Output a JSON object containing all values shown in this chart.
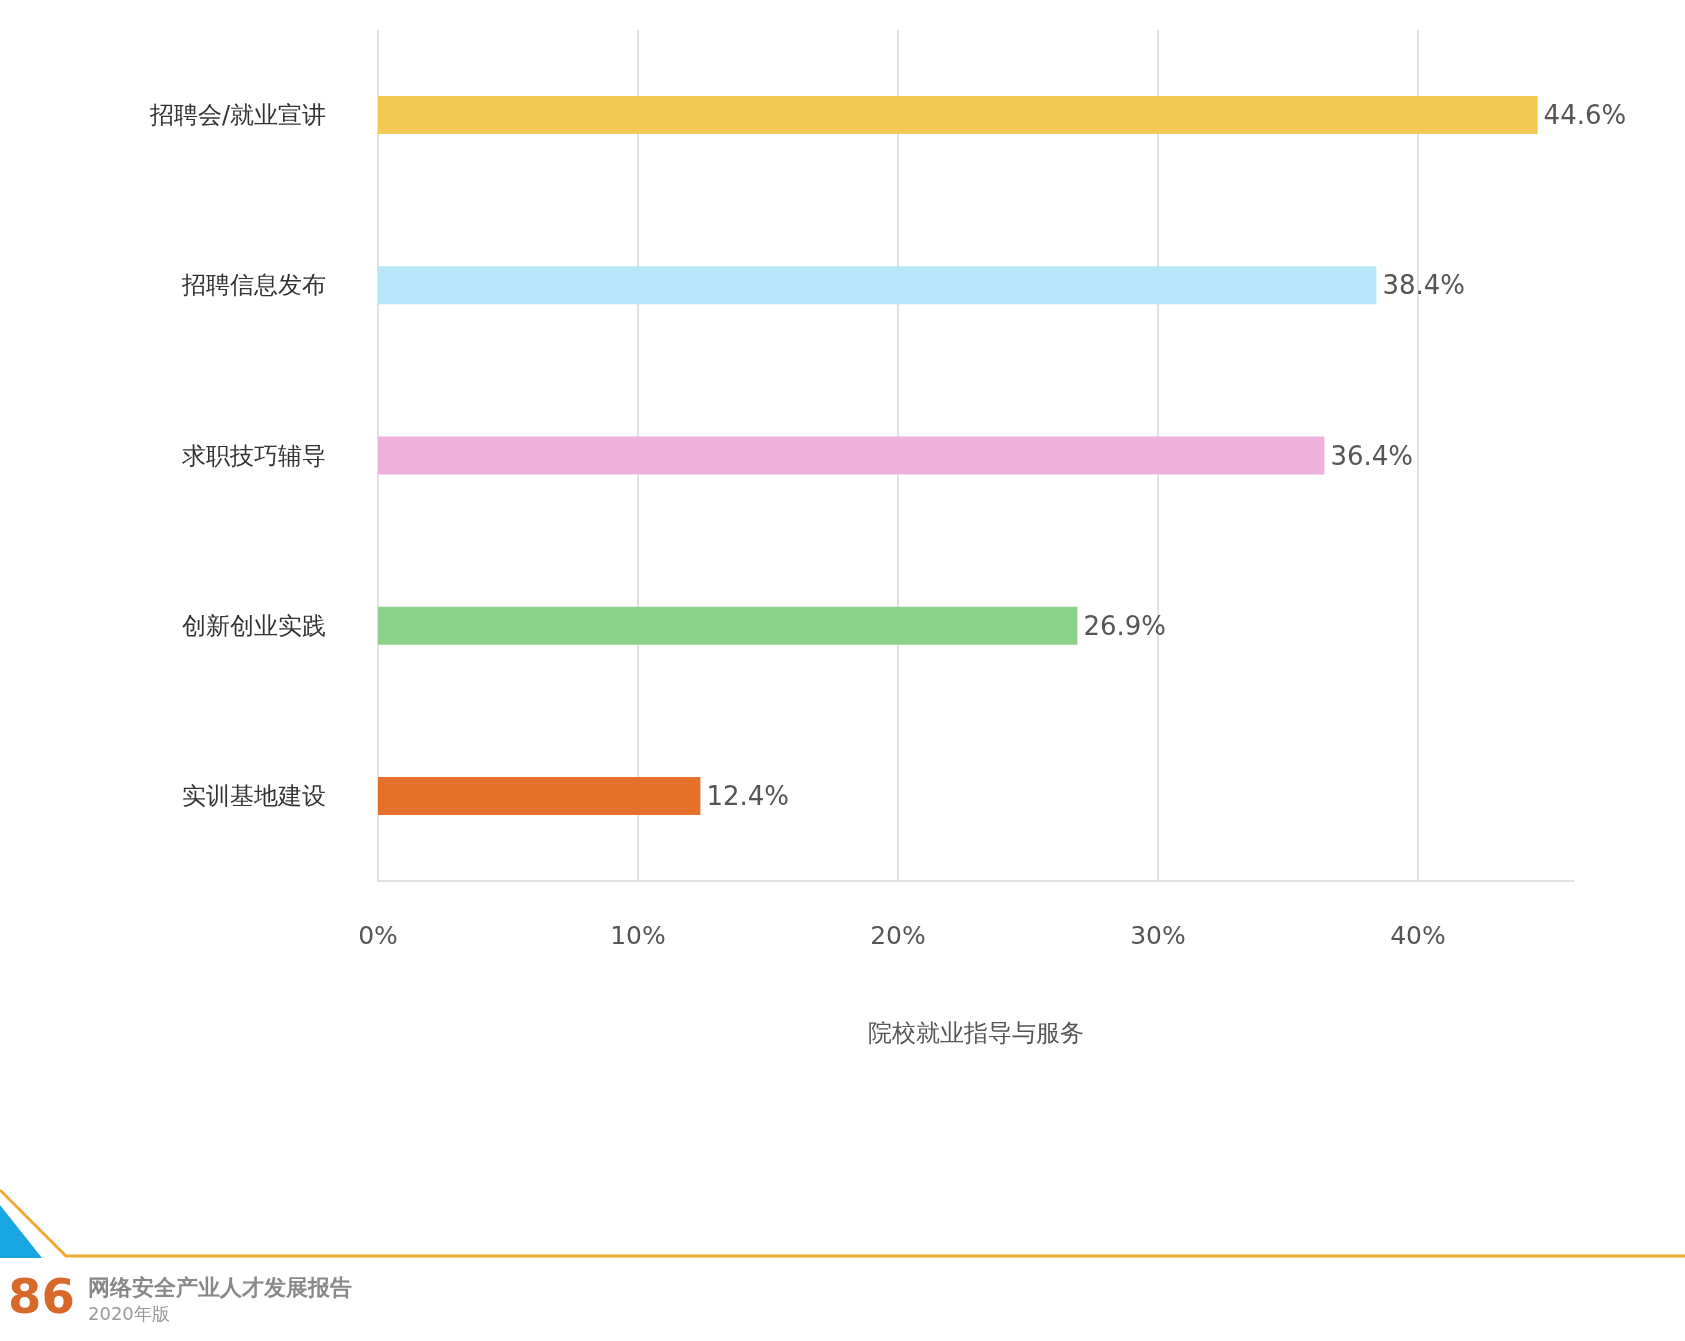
{
  "chart_data": {
    "type": "bar",
    "orientation": "horizontal",
    "xlabel": "院校就业指导与服务",
    "categories": [
      "招聘会/就业宣讲",
      "招聘信息发布",
      "求职技巧辅导",
      "创新创业实践",
      "实训基地建设"
    ],
    "values": [
      44.6,
      38.4,
      36.4,
      26.9,
      12.4
    ],
    "colors": [
      "#f2c955",
      "#b8e6f8",
      "#eeb0dc",
      "#8bd18c",
      "#e5702a"
    ],
    "value_labels": [
      "44.6%",
      "38.4%",
      "36.4%",
      "26.9%",
      "12.4%"
    ],
    "xticks": [
      {
        "value": 0,
        "label": "0%"
      },
      {
        "value": 10,
        "label": "10%"
      },
      {
        "value": 20,
        "label": "20%"
      },
      {
        "value": 30,
        "label": "30%"
      },
      {
        "value": 40,
        "label": "40%"
      }
    ],
    "xlim": [
      0,
      46
    ],
    "grid": "x",
    "annotations": [
      "86",
      "网络安全产业人才发展报告",
      "2020年版"
    ]
  }
}
